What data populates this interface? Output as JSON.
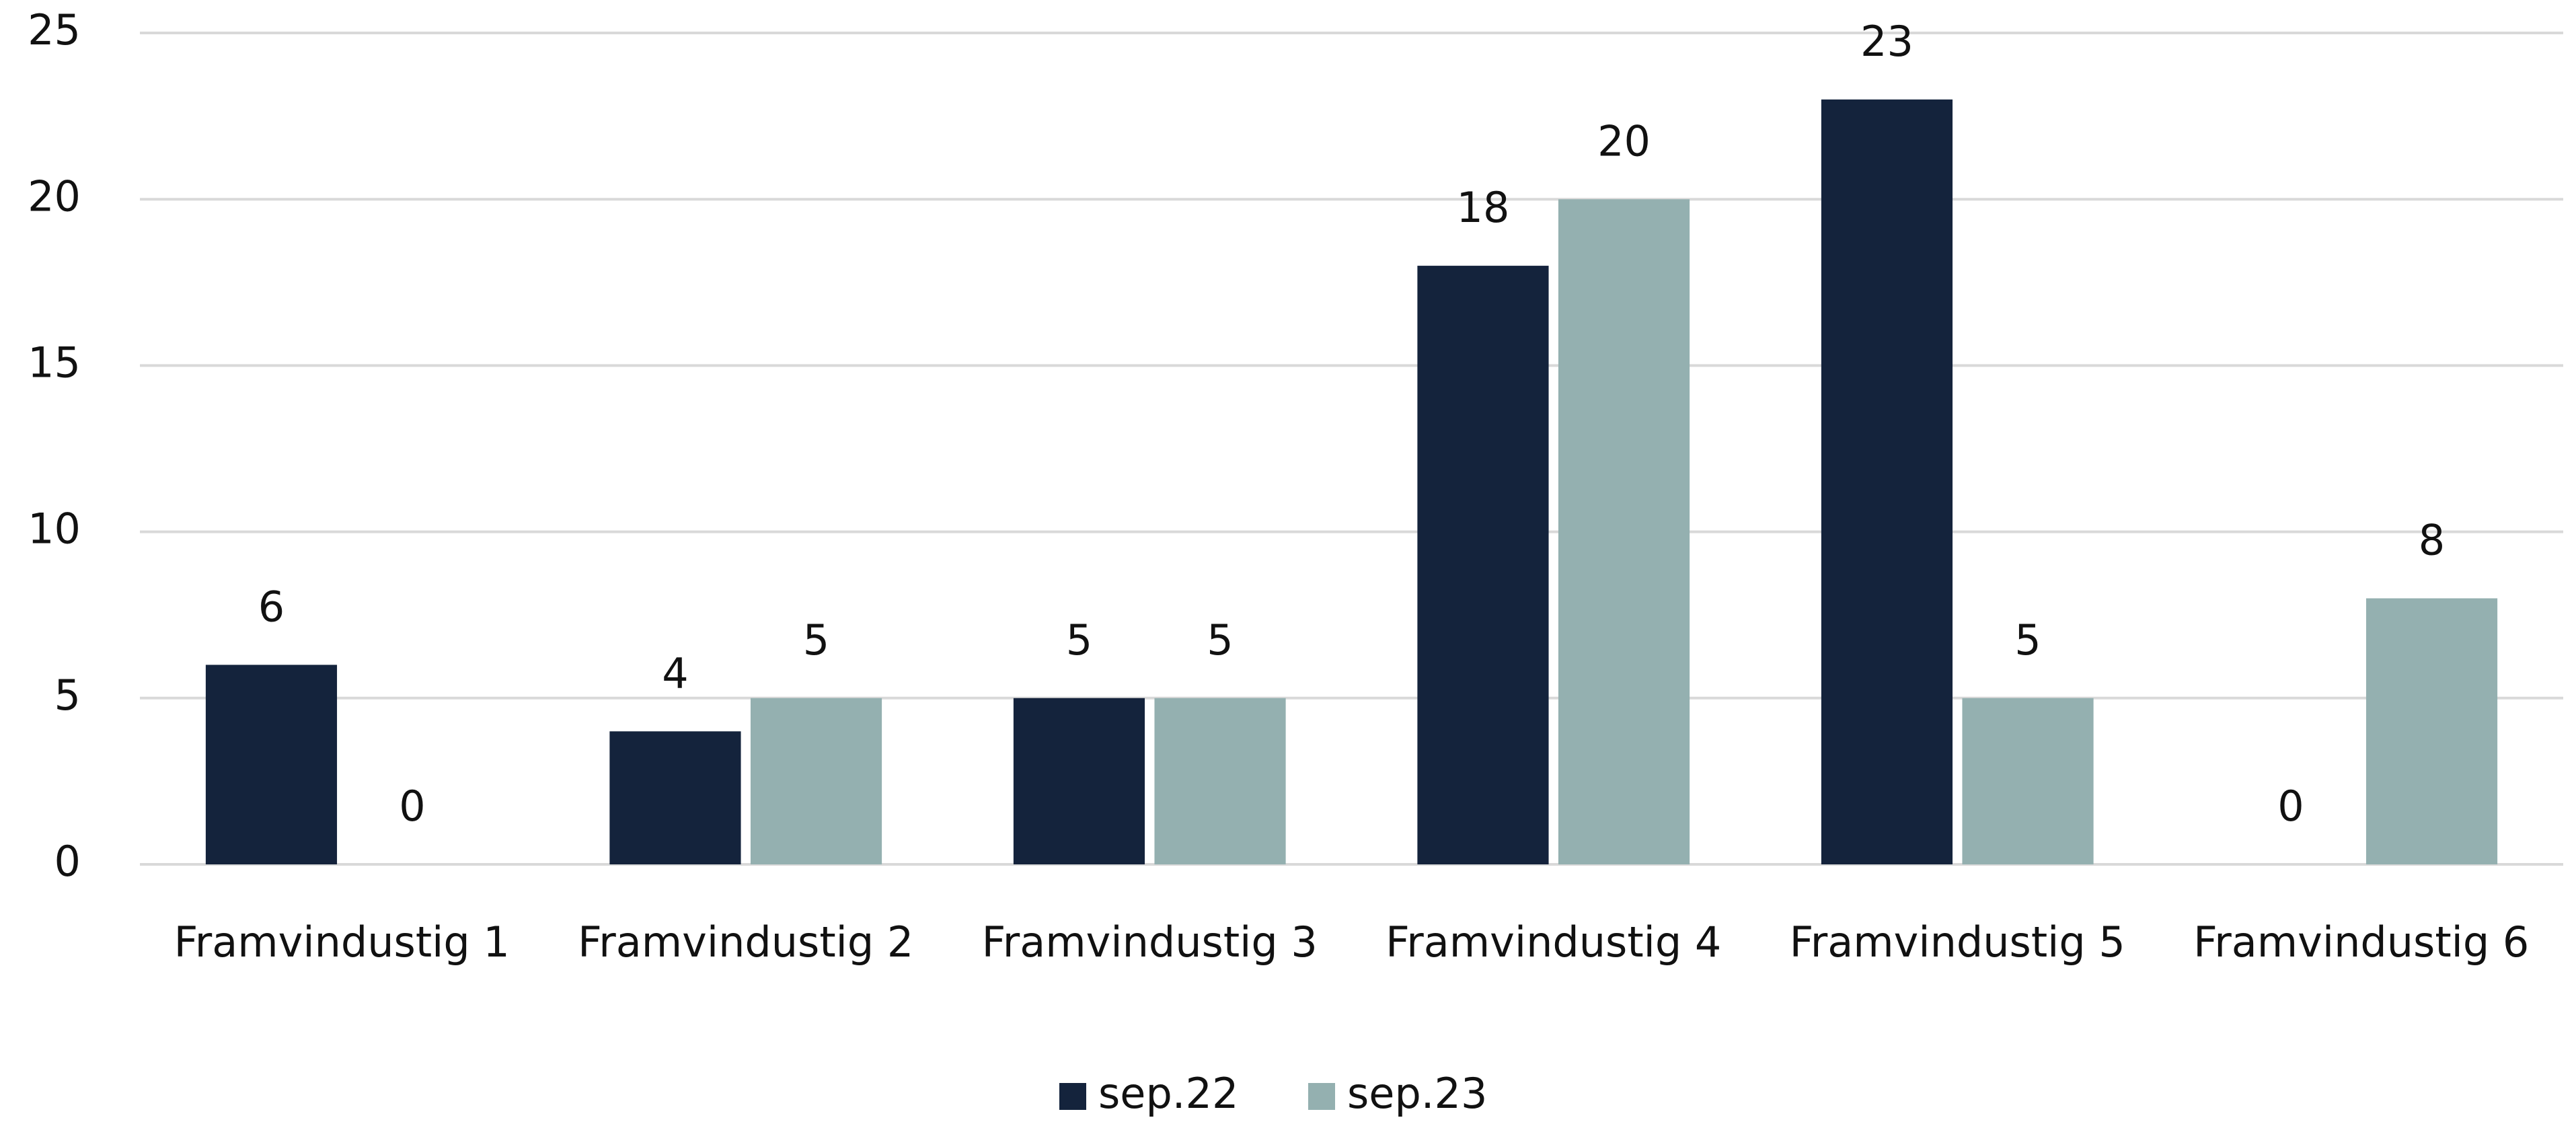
{
  "chart_data": {
    "type": "bar",
    "categories": [
      "Framvindustig 1",
      "Framvindustig 2",
      "Framvindustig 3",
      "Framvindustig 4",
      "Framvindustig 5",
      "Framvindustig 6"
    ],
    "series": [
      {
        "name": "sep.22",
        "color": "#14233c",
        "values": [
          6,
          4,
          5,
          18,
          23,
          0
        ]
      },
      {
        "name": "sep.23",
        "color": "#94b0b0",
        "values": [
          0,
          5,
          5,
          20,
          5,
          8
        ]
      }
    ],
    "ylim": [
      0,
      25
    ],
    "yticks": [
      0,
      5,
      10,
      15,
      20,
      25
    ],
    "grid": true,
    "legend": "bottom"
  }
}
